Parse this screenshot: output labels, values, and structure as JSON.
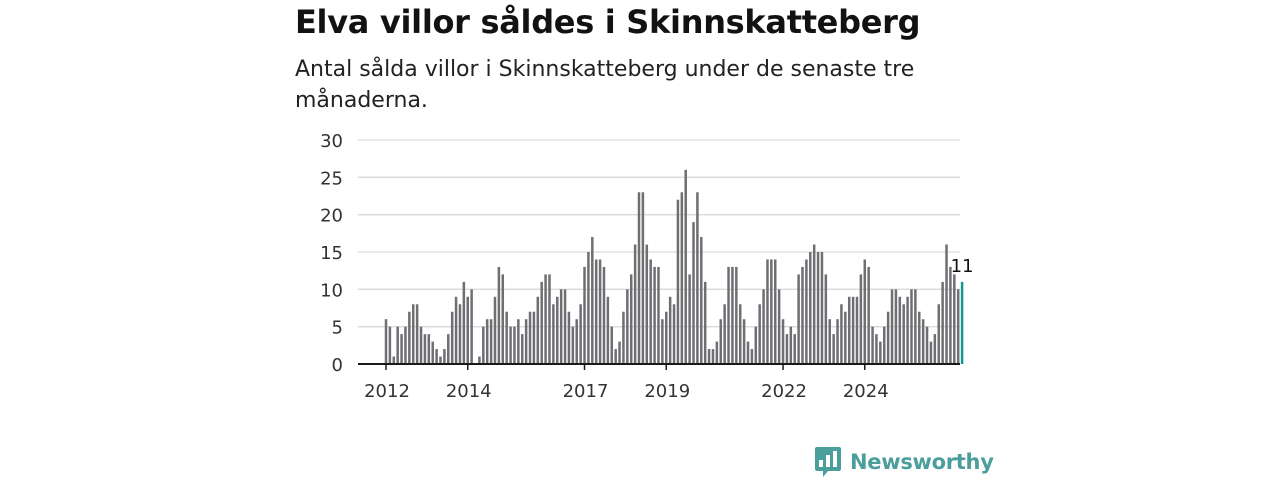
{
  "title": "Elva villor såldes i Skinnskatteberg",
  "subtitle": "Antal sålda villor i Skinnskatteberg under de senaste tre månaderna.",
  "brand": {
    "name": "Newsworthy",
    "color": "#4a9e9c",
    "icon": "newsworthy-logo-icon"
  },
  "colors": {
    "bar": "#6f6e73",
    "highlight": "#17968f",
    "grid": "#d9d9d9",
    "axis": "#1a1a1a"
  },
  "chart_data": {
    "type": "bar",
    "ylim": [
      0,
      30
    ],
    "yticks": [
      0,
      5,
      10,
      15,
      20,
      25,
      30
    ],
    "xtick_labels": [
      "2012",
      "2014",
      "2017",
      "2019",
      "2022",
      "2024"
    ],
    "xtick_indices": [
      0,
      21,
      51,
      72,
      102,
      123
    ],
    "grid": true,
    "highlight_label": "11",
    "values": [
      6,
      5,
      1,
      5,
      4,
      5,
      7,
      8,
      8,
      5,
      4,
      4,
      3,
      2,
      1,
      2,
      4,
      7,
      9,
      8,
      11,
      9,
      10,
      0,
      1,
      5,
      6,
      6,
      9,
      13,
      12,
      7,
      5,
      5,
      6,
      4,
      6,
      7,
      7,
      9,
      11,
      12,
      12,
      8,
      9,
      10,
      10,
      7,
      5,
      6,
      8,
      13,
      15,
      17,
      14,
      14,
      13,
      9,
      5,
      2,
      3,
      7,
      10,
      12,
      16,
      23,
      23,
      16,
      14,
      13,
      13,
      6,
      7,
      9,
      8,
      22,
      23,
      26,
      12,
      19,
      23,
      17,
      11,
      2,
      2,
      3,
      6,
      8,
      13,
      13,
      13,
      8,
      6,
      3,
      2,
      5,
      8,
      10,
      14,
      14,
      14,
      10,
      6,
      4,
      5,
      4,
      12,
      13,
      14,
      15,
      16,
      15,
      15,
      12,
      6,
      4,
      6,
      8,
      7,
      9,
      9,
      9,
      12,
      14,
      13,
      5,
      4,
      3,
      5,
      7,
      10,
      10,
      9,
      8,
      9,
      10,
      10,
      7,
      6,
      5,
      3,
      4,
      8,
      11,
      16,
      13,
      12,
      10,
      11
    ]
  }
}
